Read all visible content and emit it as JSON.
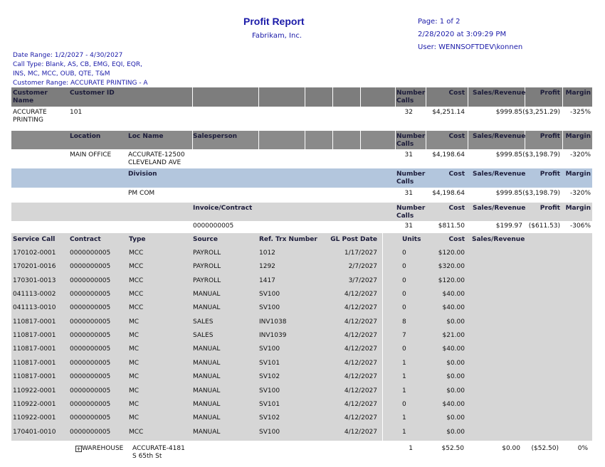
{
  "header": {
    "title": "Profit Report",
    "company": "Fabrikam, Inc.",
    "page": "Page: 1 of 2",
    "printed": "2/28/2020 at 3:09:29 PM",
    "user": "User: WENNSOFTDEV\\konnen"
  },
  "filters": [
    "Date Range: 1/2/2027 - 4/30/2027",
    "Call Type: Blank, AS, CB, EMG, EQI, EQR,",
    "INS, MC, MCC, OUB, QTE, T&M",
    "Customer Range: ACCURATE PRINTING - A"
  ],
  "customer": {
    "header": {
      "customer_name": "Customer Name",
      "customer_id": "Customer ID",
      "number_calls": "Number Calls",
      "cost": "Cost",
      "sales_revenue": "Sales/Revenue",
      "profit": "Profit",
      "margin": "Margin"
    },
    "row": {
      "customer_name": "ACCURATE PRINTING",
      "customer_id": "101",
      "number_calls": "32",
      "cost": "$4,251.14",
      "sales_revenue": "$999.85",
      "profit": "($3,251.29)",
      "margin": "-325%"
    }
  },
  "location": {
    "header": {
      "location": "Location",
      "loc_name": "Loc Name",
      "salesperson": "Salesperson",
      "number_calls": "Number Calls",
      "cost": "Cost",
      "sales_revenue": "Sales/Revenue",
      "profit": "Profit",
      "margin": "Margin"
    },
    "row": {
      "location": "MAIN OFFICE",
      "loc_name": "ACCURATE-12500 CLEVELAND AVE",
      "number_calls": "31",
      "cost": "$4,198.64",
      "sales_revenue": "$999.85",
      "profit": "($3,198.79)",
      "margin": "-320%"
    }
  },
  "division": {
    "header": {
      "division": "Division",
      "number_calls": "Number Calls",
      "cost": "Cost",
      "sales_revenue": "Sales/Revenue",
      "profit": "Profit",
      "margin": "Margin"
    },
    "row": {
      "division": "PM COM",
      "number_calls": "31",
      "cost": "$4,198.64",
      "sales_revenue": "$999.85",
      "profit": "($3,198.79)",
      "margin": "-320%"
    }
  },
  "invoice": {
    "header": {
      "invoice": "Invoice/Contract",
      "number_calls": "Number Calls",
      "cost": "Cost",
      "sales_revenue": "Sales/Revenue",
      "profit": "Profit",
      "margin": "Margin"
    },
    "row": {
      "invoice": "0000000005",
      "number_calls": "31",
      "cost": "$811.50",
      "sales_revenue": "$199.97",
      "profit": "($611.53)",
      "margin": "-306%"
    }
  },
  "details": {
    "columns": [
      "Service Call",
      "Contract",
      "Type",
      "Source",
      "Ref. Trx Number",
      "GL Post Date",
      "Units",
      "Cost",
      "Sales/Revenue"
    ],
    "rows": [
      [
        "170102-0001",
        "0000000005",
        "MCC",
        "PAYROLL",
        "1012",
        "1/17/2027",
        "0",
        "$120.00"
      ],
      [
        "170201-0016",
        "0000000005",
        "MCC",
        "PAYROLL",
        "1292",
        "2/7/2027",
        "0",
        "$320.00"
      ],
      [
        "170301-0013",
        "0000000005",
        "MCC",
        "PAYROLL",
        "1417",
        "3/7/2027",
        "0",
        "$120.00"
      ],
      [
        "041113-0002",
        "0000000005",
        "MCC",
        "MANUAL",
        "SV100",
        "4/12/2027",
        "0",
        "$40.00"
      ],
      [
        "041113-0010",
        "0000000005",
        "MCC",
        "MANUAL",
        "SV100",
        "4/12/2027",
        "0",
        "$40.00"
      ],
      [
        "110817-0001",
        "0000000005",
        "MC",
        "SALES",
        "INV1038",
        "4/12/2027",
        "8",
        "$0.00"
      ],
      [
        "110817-0001",
        "0000000005",
        "MC",
        "SALES",
        "INV1039",
        "4/12/2027",
        "7",
        "$21.00"
      ],
      [
        "110817-0001",
        "0000000005",
        "MC",
        "MANUAL",
        "SV100",
        "4/12/2027",
        "0",
        "$40.00"
      ],
      [
        "110817-0001",
        "0000000005",
        "MC",
        "MANUAL",
        "SV101",
        "4/12/2027",
        "1",
        "$0.00"
      ],
      [
        "110817-0001",
        "0000000005",
        "MC",
        "MANUAL",
        "SV102",
        "4/12/2027",
        "1",
        "$0.00"
      ],
      [
        "110922-0001",
        "0000000005",
        "MC",
        "MANUAL",
        "SV100",
        "4/12/2027",
        "1",
        "$0.00"
      ],
      [
        "110922-0001",
        "0000000005",
        "MC",
        "MANUAL",
        "SV101",
        "4/12/2027",
        "0",
        "$40.00"
      ],
      [
        "110922-0001",
        "0000000005",
        "MC",
        "MANUAL",
        "SV102",
        "4/12/2027",
        "1",
        "$0.00"
      ],
      [
        "170401-0010",
        "0000000005",
        "MCC",
        "MANUAL",
        "SV100",
        "4/12/2027",
        "1",
        "$0.00"
      ]
    ]
  },
  "next_location": {
    "location": "WAREHOUSE",
    "loc_name": "ACCURATE-4181 S 65th St",
    "number_calls": "1",
    "cost": "$52.50",
    "sales_revenue": "$0.00",
    "profit": "($52.50)",
    "margin": "0%"
  }
}
